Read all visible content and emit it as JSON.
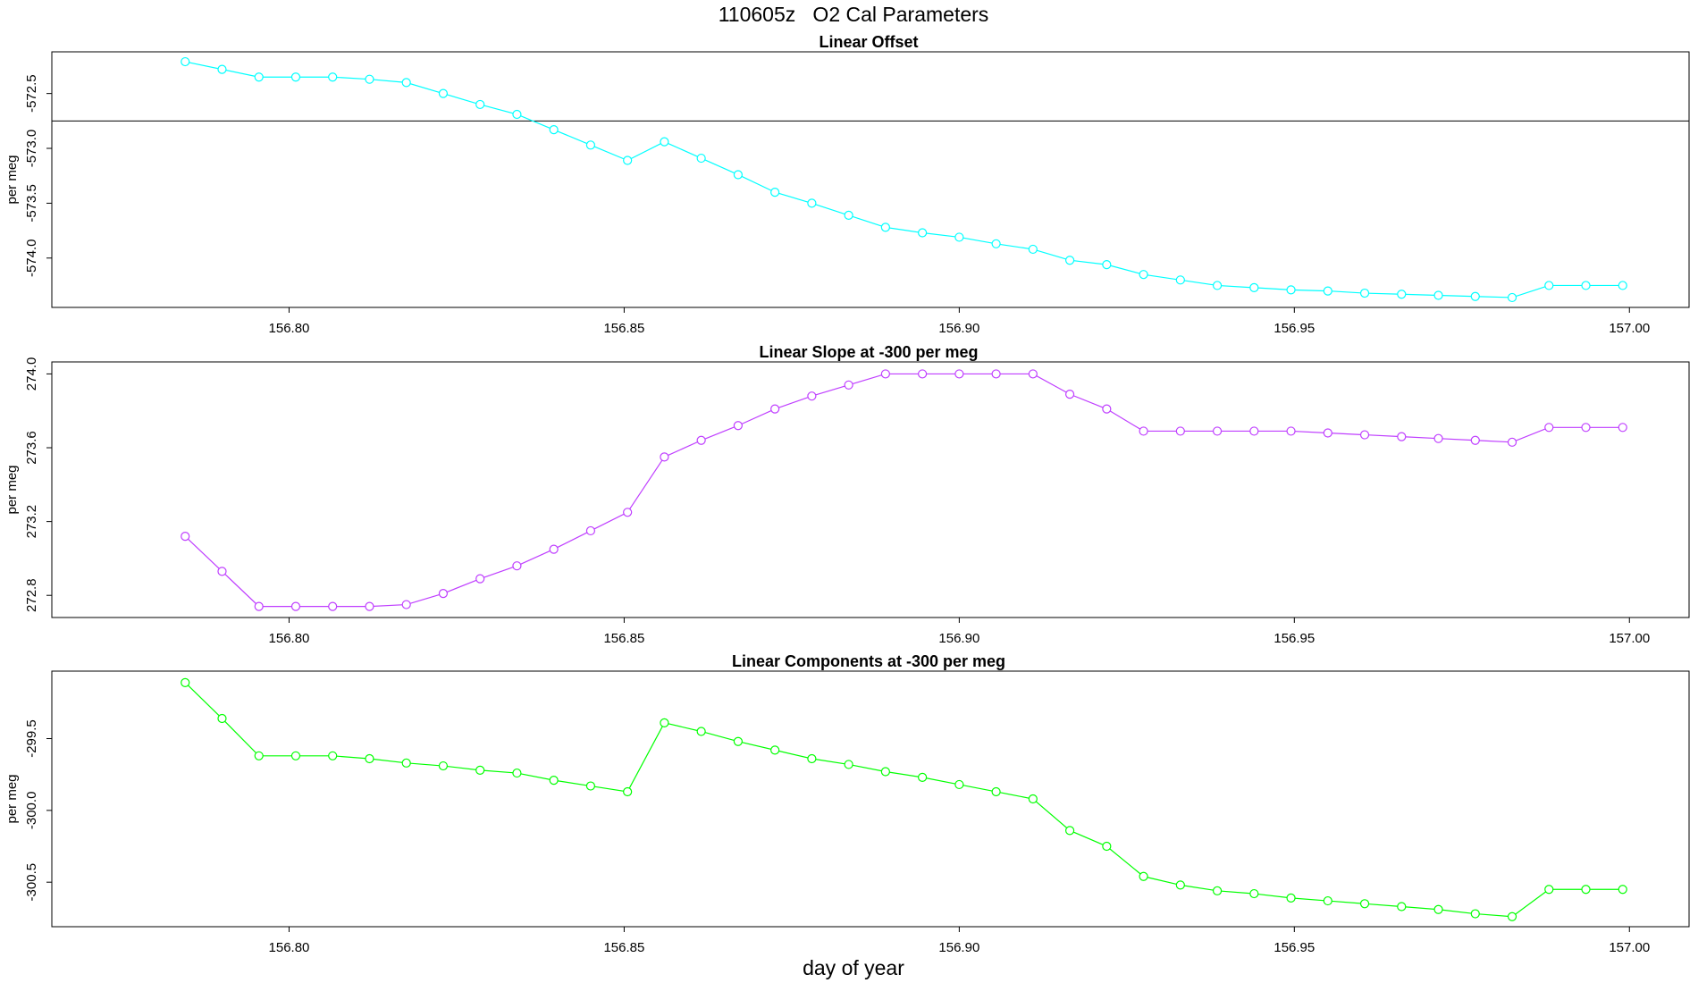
{
  "title": "110605z   O2 Cal Parameters",
  "xlabel": "day of year",
  "chart_data": [
    {
      "type": "line",
      "title": "Linear Offset",
      "ylabel": "per meg",
      "color": "#00ffff",
      "hline": -572.75,
      "x": [
        156.7845,
        156.79,
        156.7955,
        156.801,
        156.8065,
        156.812,
        156.8175,
        156.823,
        156.8285,
        156.834,
        156.8395,
        156.845,
        156.8505,
        156.856,
        156.8615,
        156.867,
        156.8725,
        156.878,
        156.8835,
        156.889,
        156.8945,
        156.9,
        156.9055,
        156.911,
        156.9165,
        156.922,
        156.9275,
        156.933,
        156.9385,
        156.944,
        156.9495,
        156.955,
        156.9605,
        156.966,
        156.9715,
        156.977,
        156.9825,
        156.988,
        156.9935,
        156.999
      ],
      "values": [
        -572.21,
        -572.28,
        -572.35,
        -572.35,
        -572.35,
        -572.37,
        -572.4,
        -572.5,
        -572.6,
        -572.69,
        -572.83,
        -572.97,
        -573.11,
        -572.94,
        -573.09,
        -573.24,
        -573.4,
        -573.5,
        -573.61,
        -573.72,
        -573.77,
        -573.81,
        -573.87,
        -573.92,
        -574.02,
        -574.06,
        -574.15,
        -574.2,
        -574.25,
        -574.27,
        -574.29,
        -574.3,
        -574.32,
        -574.33,
        -574.34,
        -574.35,
        -574.36,
        -574.25,
        -574.25,
        -574.25
      ],
      "xlim": [
        156.7646,
        157.0089
      ],
      "ylim": [
        -574.45,
        -572.12
      ],
      "xticks": [
        {
          "value": 156.8,
          "label": "156.80"
        },
        156.85,
        {
          "value": 156.9,
          "label": "156.90"
        },
        156.95,
        {
          "value": 157.0,
          "label": "157.00"
        }
      ],
      "yticks": [
        -572.5,
        {
          "value": -573.0,
          "label": "-573.0"
        },
        -573.5,
        {
          "value": -574.0,
          "label": "-574.0"
        }
      ]
    },
    {
      "type": "line",
      "title": "Linear Slope at -300 per meg",
      "ylabel": "per meg",
      "color": "#bf3eff",
      "x": [
        156.7845,
        156.79,
        156.7955,
        156.801,
        156.8065,
        156.812,
        156.8175,
        156.823,
        156.8285,
        156.834,
        156.8395,
        156.845,
        156.8505,
        156.856,
        156.8615,
        156.867,
        156.8725,
        156.878,
        156.8835,
        156.889,
        156.8945,
        156.9,
        156.9055,
        156.911,
        156.9165,
        156.922,
        156.9275,
        156.933,
        156.9385,
        156.944,
        156.9495,
        156.955,
        156.9605,
        156.966,
        156.9715,
        156.977,
        156.9825,
        156.988,
        156.9935,
        156.999
      ],
      "values": [
        273.12,
        272.93,
        272.74,
        272.74,
        272.74,
        272.74,
        272.75,
        272.81,
        272.89,
        272.96,
        273.05,
        273.15,
        273.25,
        273.55,
        273.64,
        273.72,
        273.81,
        273.88,
        273.94,
        274.0,
        274.0,
        274.0,
        274.0,
        274.0,
        273.89,
        273.81,
        273.69,
        273.69,
        273.69,
        273.69,
        273.69,
        273.68,
        273.67,
        273.66,
        273.65,
        273.64,
        273.63,
        273.71,
        273.71,
        273.71
      ],
      "xlim": [
        156.7646,
        157.0089
      ],
      "ylim": [
        272.68,
        274.065
      ],
      "xticks": [
        {
          "value": 156.8,
          "label": "156.80"
        },
        156.85,
        {
          "value": 156.9,
          "label": "156.90"
        },
        156.95,
        {
          "value": 157.0,
          "label": "157.00"
        }
      ],
      "yticks": [
        272.8,
        273.2,
        273.6,
        {
          "value": 274.0,
          "label": "274.0"
        }
      ]
    },
    {
      "type": "line",
      "title": "Linear Components at -300 per meg",
      "ylabel": "per meg",
      "color": "#00ff00",
      "x": [
        156.7845,
        156.79,
        156.7955,
        156.801,
        156.8065,
        156.812,
        156.8175,
        156.823,
        156.8285,
        156.834,
        156.8395,
        156.845,
        156.8505,
        156.856,
        156.8615,
        156.867,
        156.8725,
        156.878,
        156.8835,
        156.889,
        156.8945,
        156.9,
        156.9055,
        156.911,
        156.9165,
        156.922,
        156.9275,
        156.933,
        156.9385,
        156.944,
        156.9495,
        156.955,
        156.9605,
        156.966,
        156.9715,
        156.977,
        156.9825,
        156.988,
        156.9935,
        156.999
      ],
      "values": [
        -299.11,
        -299.36,
        -299.62,
        -299.62,
        -299.62,
        -299.64,
        -299.67,
        -299.69,
        -299.72,
        -299.74,
        -299.79,
        -299.83,
        -299.87,
        -299.39,
        -299.45,
        -299.52,
        -299.58,
        -299.64,
        -299.68,
        -299.73,
        -299.77,
        -299.82,
        -299.87,
        -299.92,
        -300.14,
        -300.25,
        -300.46,
        -300.52,
        -300.56,
        -300.58,
        -300.61,
        -300.63,
        -300.65,
        -300.67,
        -300.69,
        -300.72,
        -300.74,
        -300.55,
        -300.55,
        -300.55
      ],
      "xlim": [
        156.7646,
        157.0089
      ],
      "ylim": [
        -300.81,
        -299.03
      ],
      "xticks": [
        {
          "value": 156.8,
          "label": "156.80"
        },
        156.85,
        {
          "value": 156.9,
          "label": "156.90"
        },
        156.95,
        {
          "value": 157.0,
          "label": "157.00"
        }
      ],
      "yticks": [
        -299.5,
        {
          "value": -300.0,
          "label": "-300.0"
        },
        -300.5
      ]
    }
  ]
}
